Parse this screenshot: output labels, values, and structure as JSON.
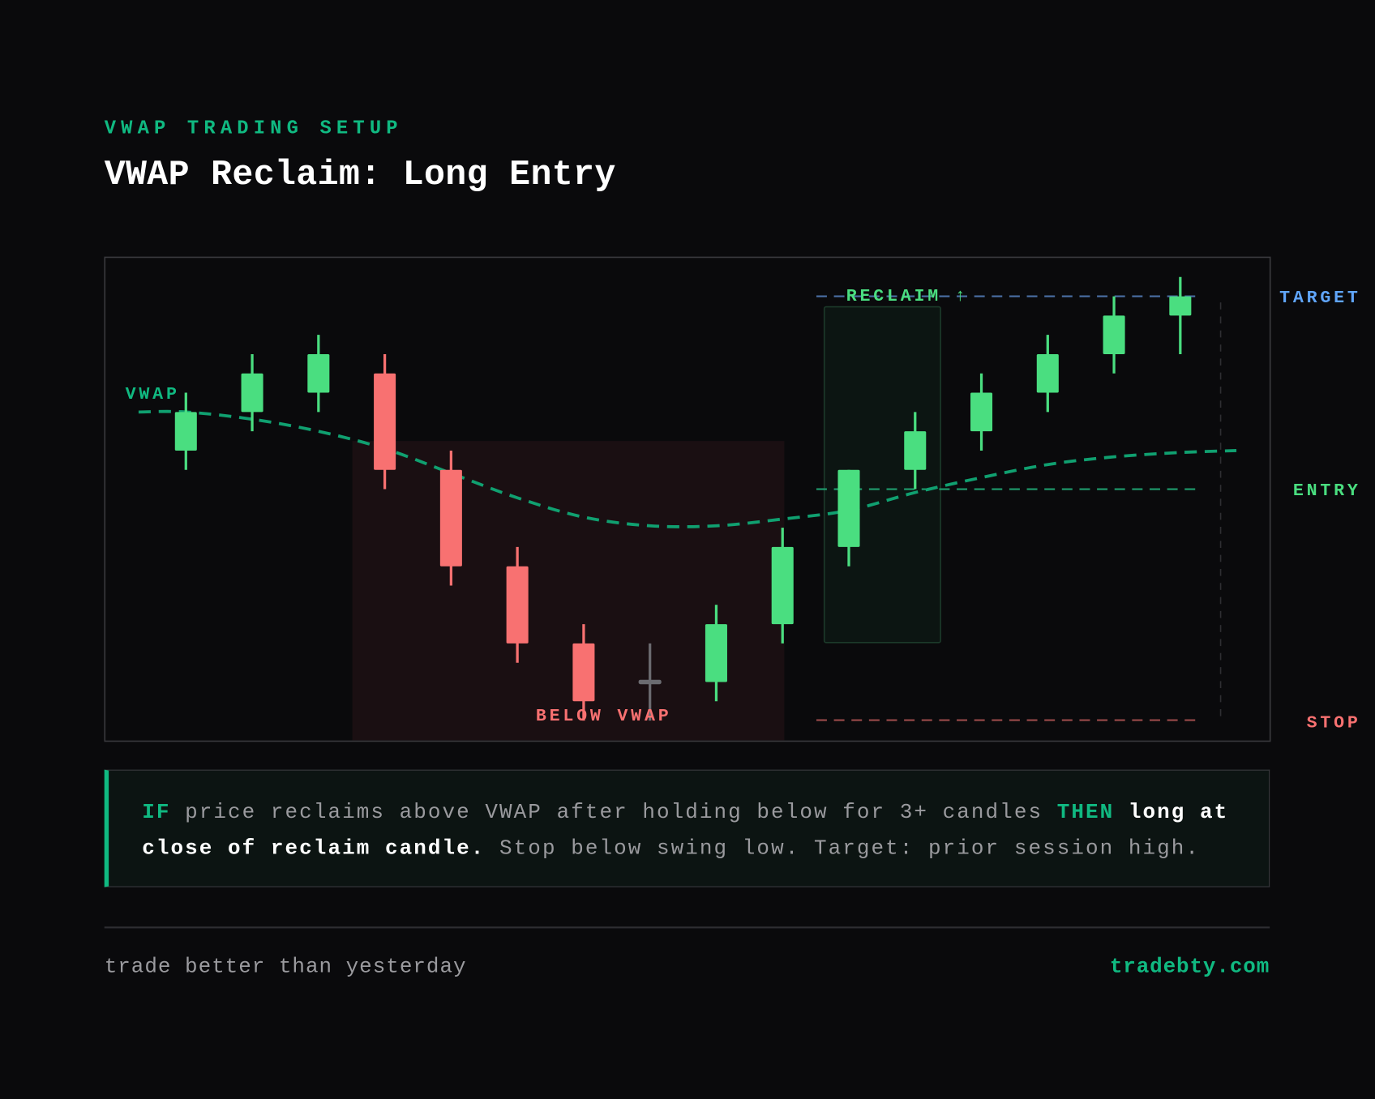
{
  "header": {
    "eyebrow": "VWAP TRADING SETUP",
    "title": "VWAP Reclaim: Long Entry"
  },
  "colors": {
    "accent": "#10b981",
    "bull": "#4ade80",
    "bear": "#f87171",
    "doji": "#6b6b70",
    "target": "#60a5fa",
    "background": "#0a0a0c"
  },
  "chart_data": {
    "type": "candlestick",
    "ylim": [
      4,
      104
    ],
    "grid": false,
    "candles": [
      {
        "o": 64,
        "h": 76,
        "l": 60,
        "c": 72
      },
      {
        "o": 72,
        "h": 84,
        "l": 68,
        "c": 80
      },
      {
        "o": 76,
        "h": 88,
        "l": 72,
        "c": 84
      },
      {
        "o": 80,
        "h": 84,
        "l": 56,
        "c": 60
      },
      {
        "o": 60,
        "h": 64,
        "l": 36,
        "c": 40
      },
      {
        "o": 40,
        "h": 44,
        "l": 20,
        "c": 24
      },
      {
        "o": 24,
        "h": 28,
        "l": 8,
        "c": 12
      },
      {
        "o": 16,
        "h": 24,
        "l": 8,
        "c": 16
      },
      {
        "o": 16,
        "h": 32,
        "l": 12,
        "c": 28
      },
      {
        "o": 28,
        "h": 48,
        "l": 24,
        "c": 44
      },
      {
        "o": 44,
        "h": 60,
        "l": 40,
        "c": 60
      },
      {
        "o": 60,
        "h": 72,
        "l": 56,
        "c": 68
      },
      {
        "o": 68,
        "h": 80,
        "l": 64,
        "c": 76
      },
      {
        "o": 76,
        "h": 88,
        "l": 72,
        "c": 84
      },
      {
        "o": 84,
        "h": 96,
        "l": 80,
        "c": 92
      },
      {
        "o": 92,
        "h": 100,
        "l": 84,
        "c": 96
      }
    ],
    "vwap": {
      "label": "VWAP",
      "start": 72,
      "values": [
        72,
        70.5,
        68,
        64.4,
        59.3,
        54.2,
        50.2,
        48.4,
        48.4,
        49.8,
        51.6,
        55.3,
        58.4,
        61.1,
        62.7,
        63.6
      ],
      "end": 64
    },
    "levels": {
      "target": {
        "label": "TARGET",
        "value": 96
      },
      "entry": {
        "label": "ENTRY",
        "value": 56
      },
      "stop": {
        "label": "STOP",
        "value": 8
      }
    },
    "zones": {
      "below_vwap": {
        "label": "BELOW VWAP",
        "from_candle": 4,
        "to_candle": 10
      },
      "reclaim": {
        "label": "RECLAIM ↑",
        "from_candle": 11,
        "to_candle": 12
      }
    }
  },
  "info": {
    "if": "IF",
    "condition": " price reclaims above VWAP after holding below for 3+ candles ",
    "then": "THEN",
    "action": " long at close of reclaim candle.",
    "rest": " Stop below swing low. Target: prior session high."
  },
  "footer": {
    "tagline": "trade better than yesterday",
    "site": "tradebty.com"
  }
}
